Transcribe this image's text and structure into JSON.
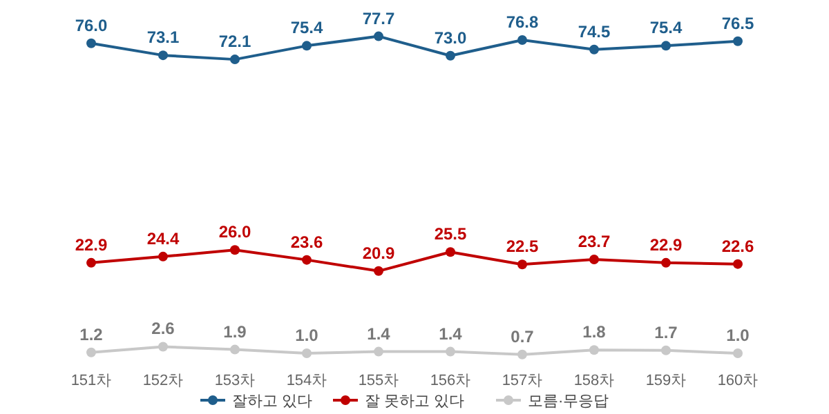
{
  "chart_data": {
    "type": "line",
    "categories": [
      "151차",
      "152차",
      "153차",
      "154차",
      "155차",
      "156차",
      "157차",
      "158차",
      "159차",
      "160차"
    ],
    "series": [
      {
        "name": "잘하고 있다",
        "color": "#1f5e8c",
        "values": [
          76.0,
          73.1,
          72.1,
          75.4,
          77.7,
          73.0,
          76.8,
          74.5,
          75.4,
          76.5
        ],
        "value_labels": [
          "76.0",
          "73.1",
          "72.1",
          "75.4",
          "77.7",
          "73.0",
          "76.8",
          "74.5",
          "75.4",
          "76.5"
        ]
      },
      {
        "name": "잘 못하고 있다",
        "color": "#c00000",
        "values": [
          22.9,
          24.4,
          26.0,
          23.6,
          20.9,
          25.5,
          22.5,
          23.7,
          22.9,
          22.6
        ],
        "value_labels": [
          "22.9",
          "24.4",
          "26.0",
          "23.6",
          "20.9",
          "25.5",
          "22.5",
          "23.7",
          "22.9",
          "22.6"
        ]
      },
      {
        "name": "모름·무응답",
        "color": "#c8c8c8",
        "values": [
          1.2,
          2.6,
          1.9,
          1.0,
          1.4,
          1.4,
          0.7,
          1.8,
          1.7,
          1.0
        ],
        "value_labels": [
          "1.2",
          "2.6",
          "1.9",
          "1.0",
          "1.4",
          "1.4",
          "0.7",
          "1.8",
          "1.7",
          "1.0"
        ]
      }
    ],
    "legend": "bottom",
    "marker": "circle",
    "line_style": "solid"
  }
}
